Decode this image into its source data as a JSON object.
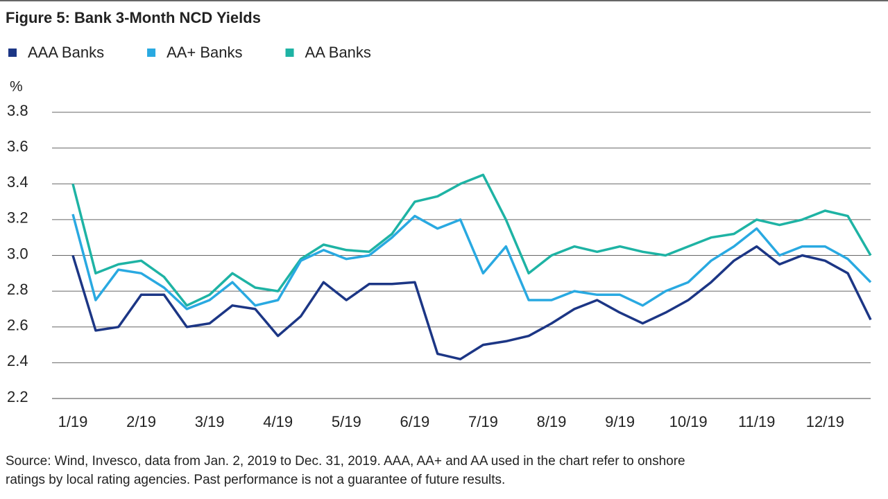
{
  "chart_data": {
    "type": "line",
    "title": "Figure 5: Bank 3-Month NCD Yields",
    "y_label": "%",
    "categories": [
      "1/19",
      null,
      null,
      "2/19",
      null,
      null,
      "3/19",
      null,
      null,
      "4/19",
      null,
      null,
      "5/19",
      null,
      null,
      "6/19",
      null,
      null,
      "7/19",
      null,
      null,
      "8/19",
      null,
      null,
      "9/19",
      null,
      null,
      "10/19",
      null,
      null,
      "11/19",
      null,
      null,
      "12/19",
      null,
      null
    ],
    "series": [
      {
        "name": "AAA Banks",
        "color": "#1c3685",
        "values": [
          3.0,
          2.58,
          2.6,
          2.78,
          2.78,
          2.6,
          2.62,
          2.72,
          2.7,
          2.55,
          2.66,
          2.85,
          2.75,
          2.84,
          2.84,
          2.85,
          2.45,
          2.42,
          2.5,
          2.52,
          2.55,
          2.62,
          2.7,
          2.75,
          2.68,
          2.62,
          2.68,
          2.75,
          2.85,
          2.97,
          3.05,
          2.95,
          3.0,
          2.97,
          2.9,
          2.64
        ]
      },
      {
        "name": "AA+ Banks",
        "color": "#29a9e1",
        "values": [
          3.23,
          2.75,
          2.92,
          2.9,
          2.82,
          2.7,
          2.75,
          2.85,
          2.72,
          2.75,
          2.97,
          3.03,
          2.98,
          3.0,
          3.1,
          3.22,
          3.15,
          3.2,
          2.9,
          3.05,
          2.75,
          2.75,
          2.8,
          2.78,
          2.78,
          2.72,
          2.8,
          2.85,
          2.97,
          3.05,
          3.15,
          3.0,
          3.05,
          3.05,
          2.98,
          2.85
        ]
      },
      {
        "name": "AA Banks",
        "color": "#1eb3a4",
        "values": [
          3.4,
          2.9,
          2.95,
          2.97,
          2.88,
          2.72,
          2.78,
          2.9,
          2.82,
          2.8,
          2.98,
          3.06,
          3.03,
          3.02,
          3.12,
          3.3,
          3.33,
          3.4,
          3.45,
          3.2,
          2.9,
          3.0,
          3.05,
          3.02,
          3.05,
          3.02,
          3.0,
          3.05,
          3.1,
          3.12,
          3.2,
          3.17,
          3.2,
          3.25,
          3.22,
          3.0
        ]
      }
    ],
    "ylim": [
      2.2,
      3.8
    ],
    "yticks": [
      2.2,
      2.4,
      2.6,
      2.8,
      {
        "value": 3.0,
        "label": "3.0"
      },
      3.2,
      3.4,
      3.6,
      3.8
    ],
    "grid": true,
    "source": [
      "Source: Wind, Invesco, data from Jan. 2, 2019 to Dec. 31, 2019. AAA, AA+ and AA used in the chart refer to onshore",
      "ratings by local rating agencies. Past performance is not a guarantee of future results."
    ]
  }
}
